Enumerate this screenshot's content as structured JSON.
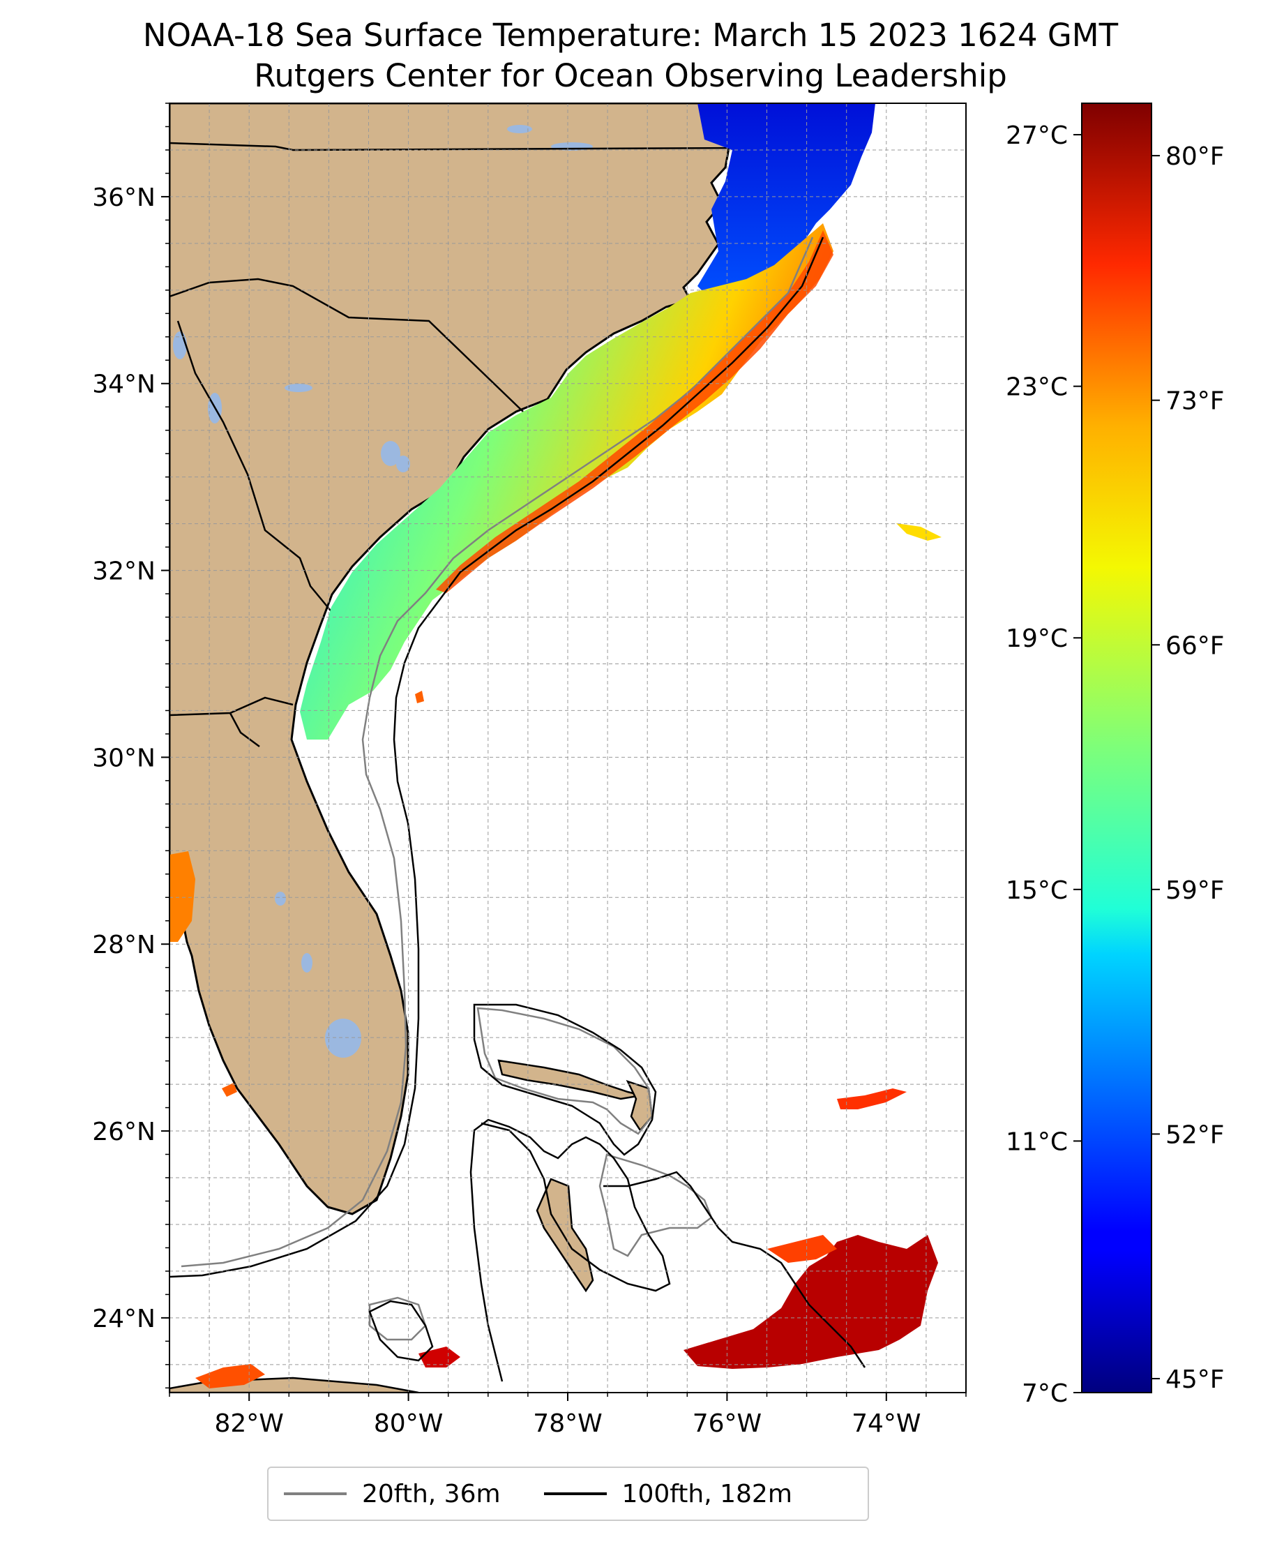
{
  "title": {
    "line1": "NOAA-18 Sea Surface Temperature: March 15 2023 1624 GMT",
    "line2": "Rutgers Center for Ocean Observing Leadership"
  },
  "map": {
    "lon_range": [
      -83,
      -73
    ],
    "lat_range": [
      23.2,
      37
    ],
    "x_ticks": [
      "82°W",
      "80°W",
      "78°W",
      "76°W",
      "74°W"
    ],
    "x_tick_lons": [
      -82,
      -80,
      -78,
      -76,
      -74
    ],
    "y_ticks": [
      "24°N",
      "26°N",
      "28°N",
      "30°N",
      "32°N",
      "34°N",
      "36°N"
    ],
    "y_tick_lats": [
      24,
      26,
      28,
      30,
      32,
      34,
      36
    ],
    "grid": true,
    "colors": {
      "land": "#d2b48c",
      "lakes": "#9bb8e0",
      "isobath_20fth": "#808080",
      "isobath_100fth": "#000000"
    }
  },
  "colorbar": {
    "celsius_labels": [
      "27°C",
      "23°C",
      "19°C",
      "15°C",
      "11°C",
      "7°C"
    ],
    "fahrenheit_labels": [
      "80°F",
      "73°F",
      "66°F",
      "59°F",
      "52°F",
      "45°F"
    ],
    "celsius_values": [
      27,
      23,
      19,
      15,
      11,
      7
    ],
    "fahrenheit_values": [
      80,
      73,
      66,
      59,
      52,
      45
    ],
    "range_c": [
      7,
      27.5
    ],
    "colormap": "jet"
  },
  "legend": {
    "items": [
      {
        "label": "20fth, 36m",
        "color": "#808080"
      },
      {
        "label": "100fth, 182m",
        "color": "#000000"
      }
    ]
  }
}
